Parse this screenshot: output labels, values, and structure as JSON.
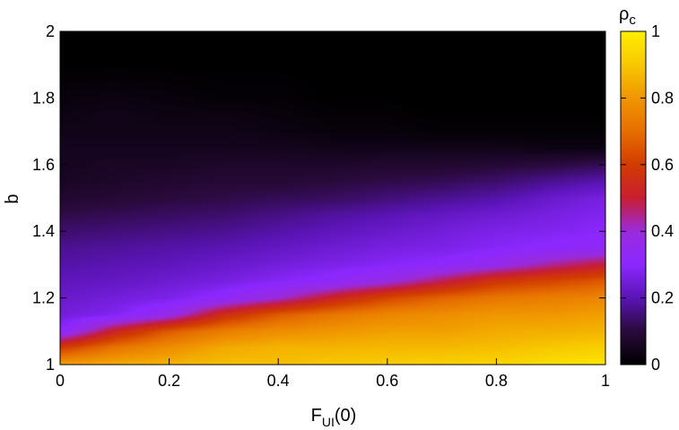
{
  "chart_data": {
    "type": "heatmap",
    "title": "",
    "xlabel": "F",
    "xlabel_sub": "UI",
    "xlabel_suffix": "(0)",
    "ylabel": "b",
    "xlim": [
      0,
      1
    ],
    "ylim": [
      1,
      2
    ],
    "x_ticks": [
      0,
      0.2,
      0.4,
      0.6,
      0.8,
      1
    ],
    "x_tick_labels": [
      "0",
      "0.2",
      "0.4",
      "0.6",
      "0.8",
      "1"
    ],
    "y_ticks": [
      1,
      1.2,
      1.4,
      1.6,
      1.8,
      2
    ],
    "y_tick_labels": [
      "1",
      "1.2",
      "1.4",
      "1.6",
      "1.8",
      "2"
    ],
    "colorbar": {
      "label": "ρ",
      "label_sub": "c",
      "range": [
        0,
        1
      ],
      "ticks": [
        0,
        0.2,
        0.4,
        0.6,
        0.8,
        1
      ],
      "tick_labels": [
        "0",
        "0.2",
        "0.4",
        "0.6",
        "0.8",
        "1"
      ],
      "colormap_stops": [
        {
          "v": 0.0,
          "color": "#000000"
        },
        {
          "v": 0.1,
          "color": "#2a0a3c"
        },
        {
          "v": 0.2,
          "color": "#5a14b4"
        },
        {
          "v": 0.3,
          "color": "#8c28ff"
        },
        {
          "v": 0.4,
          "color": "#9a2adc"
        },
        {
          "v": 0.5,
          "color": "#c81e32"
        },
        {
          "v": 0.6,
          "color": "#d23c00"
        },
        {
          "v": 0.7,
          "color": "#e66e00"
        },
        {
          "v": 0.8,
          "color": "#f09600"
        },
        {
          "v": 0.9,
          "color": "#f8c800"
        },
        {
          "v": 1.0,
          "color": "#ffee00"
        }
      ]
    },
    "x": [
      0,
      0.1,
      0.2,
      0.3,
      0.4,
      0.5,
      0.6,
      0.7,
      0.8,
      0.9,
      1.0
    ],
    "y": [
      1.0,
      1.05,
      1.1,
      1.15,
      1.2,
      1.25,
      1.3,
      1.35,
      1.4,
      1.45,
      1.5,
      1.55,
      1.6,
      1.65,
      1.7,
      1.75,
      1.8,
      1.9,
      2.0
    ],
    "values": [
      [
        0.82,
        0.84,
        0.86,
        0.88,
        0.88,
        0.9,
        0.91,
        0.92,
        0.93,
        0.96,
        0.98
      ],
      [
        0.6,
        0.72,
        0.78,
        0.84,
        0.86,
        0.86,
        0.87,
        0.87,
        0.88,
        0.9,
        0.92
      ],
      [
        0.3,
        0.52,
        0.66,
        0.74,
        0.78,
        0.8,
        0.82,
        0.82,
        0.84,
        0.85,
        0.86
      ],
      [
        0.25,
        0.28,
        0.36,
        0.55,
        0.66,
        0.72,
        0.76,
        0.78,
        0.8,
        0.8,
        0.82
      ],
      [
        0.23,
        0.25,
        0.27,
        0.32,
        0.4,
        0.52,
        0.62,
        0.68,
        0.72,
        0.74,
        0.76
      ],
      [
        0.21,
        0.22,
        0.24,
        0.26,
        0.29,
        0.32,
        0.38,
        0.48,
        0.58,
        0.62,
        0.66
      ],
      [
        0.19,
        0.2,
        0.21,
        0.23,
        0.25,
        0.27,
        0.29,
        0.31,
        0.36,
        0.44,
        0.5
      ],
      [
        0.17,
        0.18,
        0.19,
        0.2,
        0.22,
        0.24,
        0.26,
        0.27,
        0.29,
        0.31,
        0.33
      ],
      [
        0.14,
        0.15,
        0.16,
        0.17,
        0.19,
        0.21,
        0.23,
        0.25,
        0.27,
        0.28,
        0.3
      ],
      [
        0.11,
        0.12,
        0.13,
        0.14,
        0.16,
        0.18,
        0.2,
        0.22,
        0.24,
        0.26,
        0.28
      ],
      [
        0.08,
        0.09,
        0.1,
        0.11,
        0.12,
        0.13,
        0.15,
        0.17,
        0.19,
        0.23,
        0.26
      ],
      [
        0.06,
        0.07,
        0.08,
        0.09,
        0.09,
        0.1,
        0.11,
        0.12,
        0.14,
        0.17,
        0.2
      ],
      [
        0.05,
        0.06,
        0.06,
        0.07,
        0.07,
        0.07,
        0.08,
        0.08,
        0.09,
        0.1,
        0.12
      ],
      [
        0.05,
        0.05,
        0.05,
        0.05,
        0.05,
        0.04,
        0.04,
        0.04,
        0.04,
        0.03,
        0.03
      ],
      [
        0.04,
        0.04,
        0.04,
        0.04,
        0.03,
        0.02,
        0.02,
        0.01,
        0.01,
        0.01,
        0.01
      ],
      [
        0.03,
        0.04,
        0.03,
        0.03,
        0.02,
        0.01,
        0.01,
        0.0,
        0.0,
        0.0,
        0.0
      ],
      [
        0.02,
        0.03,
        0.02,
        0.01,
        0.01,
        0.0,
        0.0,
        0.0,
        0.0,
        0.0,
        0.0
      ],
      [
        0.0,
        0.0,
        0.0,
        0.0,
        0.0,
        0.0,
        0.0,
        0.0,
        0.0,
        0.0,
        0.0
      ],
      [
        0.0,
        0.0,
        0.0,
        0.0,
        0.0,
        0.0,
        0.0,
        0.0,
        0.0,
        0.0,
        0.0
      ]
    ]
  }
}
